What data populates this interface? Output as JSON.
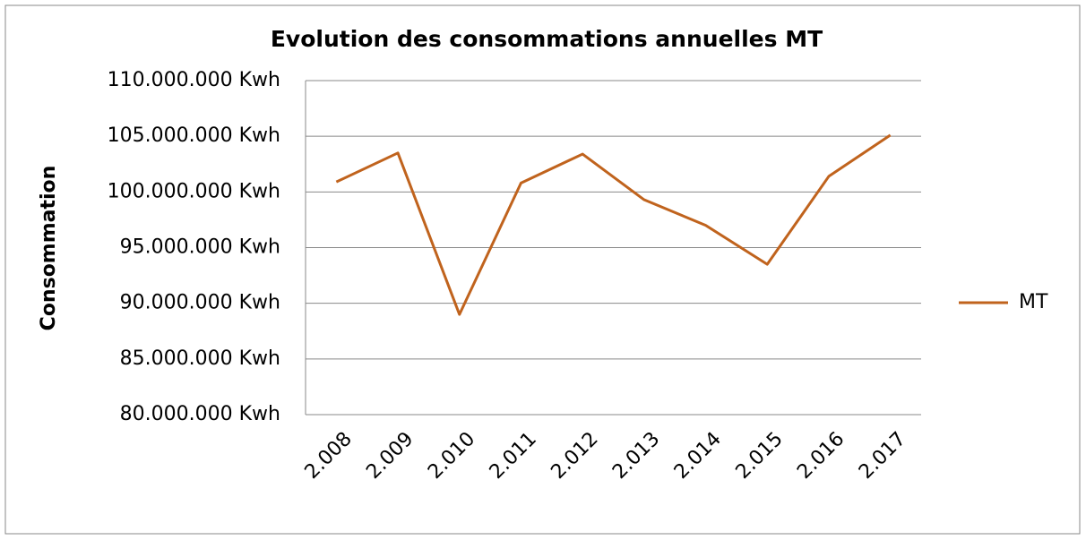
{
  "chart_data": {
    "type": "line",
    "title": "Evolution des consommations annuelles MT",
    "y_label": "Consommation",
    "categories": [
      "2.008",
      "2.009",
      "2.010",
      "2.011",
      "2.012",
      "2.013",
      "2.014",
      "2.015",
      "2.016",
      "2.017"
    ],
    "series": [
      {
        "name": "MT",
        "color": "#c0631d",
        "values": [
          100900000,
          103500000,
          89000000,
          100800000,
          103400000,
          99300000,
          97000000,
          93500000,
          101400000,
          105100000
        ]
      }
    ],
    "ylim": [
      80000000,
      110000000
    ],
    "yticks": [
      {
        "value": 80000000,
        "label": "80.000.000 Kwh"
      },
      {
        "value": 85000000,
        "label": "85.000.000 Kwh"
      },
      {
        "value": 90000000,
        "label": "90.000.000 Kwh"
      },
      {
        "value": 95000000,
        "label": "95.000.000 Kwh"
      },
      {
        "value": 100000000,
        "label": "100.000.000 Kwh"
      },
      {
        "value": 105000000,
        "label": "105.000.000 Kwh"
      },
      {
        "value": 110000000,
        "label": "110.000.000 Kwh"
      }
    ],
    "grid": true,
    "legend": "right"
  }
}
